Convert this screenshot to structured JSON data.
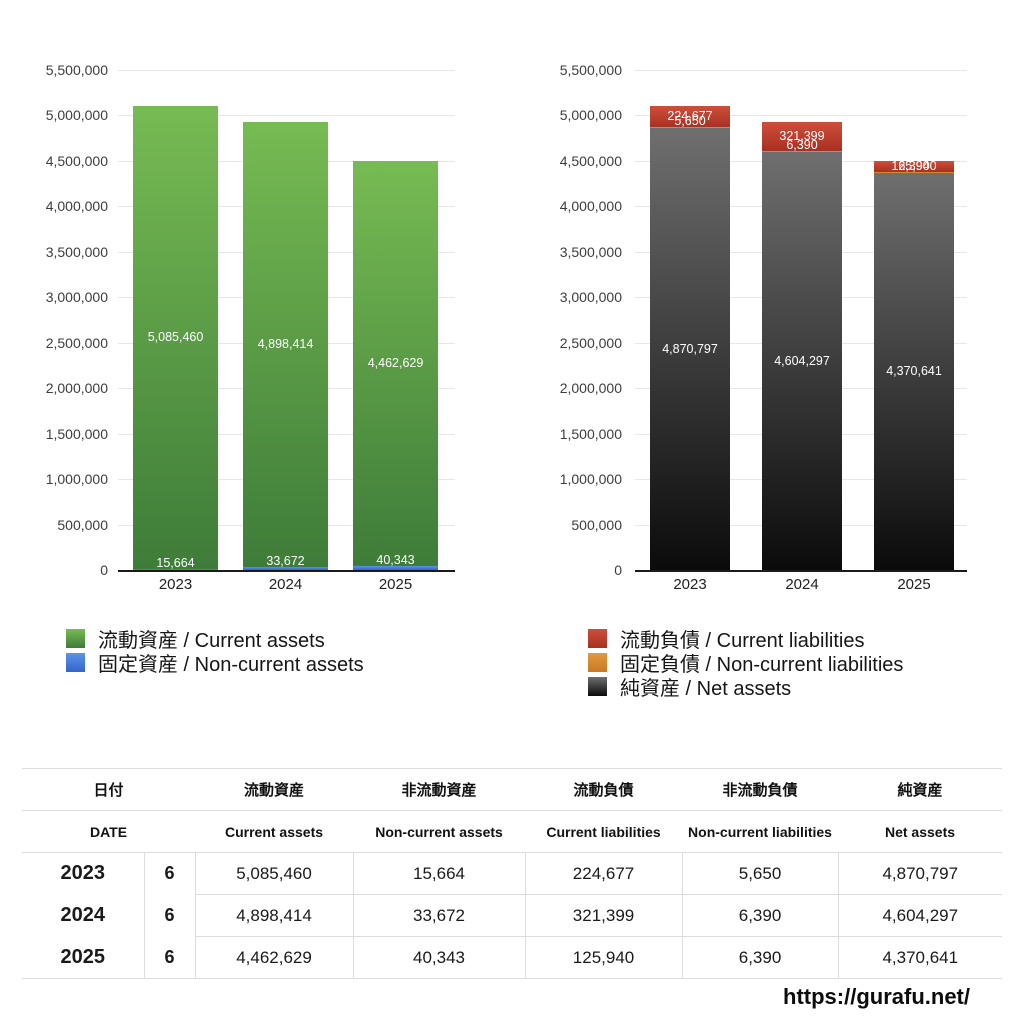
{
  "chart_data": [
    {
      "type": "bar",
      "stacked": true,
      "categories": [
        "2023",
        "2024",
        "2025"
      ],
      "ylim": [
        0,
        5500000
      ],
      "ytick_step": 500000,
      "grid": true,
      "legend_position": "bottom-left",
      "series": [
        {
          "name": "流動資産 / Current assets",
          "values": [
            5085460,
            4898414,
            4462629
          ],
          "color_top": "#77bb53",
          "color_bottom": "#3e7c39",
          "label_placement": "center"
        },
        {
          "name": "固定資産 / Non-current assets",
          "values": [
            15664,
            33672,
            40343
          ],
          "color_top": "#5b94e7",
          "color_bottom": "#3465cb",
          "label_placement": "above"
        }
      ]
    },
    {
      "type": "bar",
      "stacked": true,
      "categories": [
        "2023",
        "2024",
        "2025"
      ],
      "ylim": [
        0,
        5500000
      ],
      "ytick_step": 500000,
      "grid": true,
      "legend_position": "bottom-left",
      "series": [
        {
          "name": "流動負債 / Current liabilities",
          "values": [
            224677,
            321399,
            125940
          ],
          "color_top": "#ce4e3b",
          "color_bottom": "#a83122",
          "label_placement": "center"
        },
        {
          "name": "固定負債 / Non-current liabilities",
          "values": [
            5650,
            6390,
            6390
          ],
          "color_top": "#e29a40",
          "color_bottom": "#c97a21",
          "label_placement": "above"
        },
        {
          "name": "純資産 / Net assets",
          "values": [
            4870797,
            4604297,
            4370641
          ],
          "color_top": "#6f6f6f",
          "color_bottom": "#0b0b0b",
          "label_placement": "center"
        }
      ]
    }
  ],
  "table": {
    "header_ja": [
      "日付",
      "流動資産",
      "非流動資産",
      "流動負債",
      "非流動負債",
      "純資産"
    ],
    "header_en": [
      "DATE",
      "Current assets",
      "Non-current assets",
      "Current liabilities",
      "Non-current liabilities",
      "Net assets"
    ],
    "rows": [
      {
        "year": "2023",
        "month": "6",
        "values": [
          "5,085,460",
          "15,664",
          "224,677",
          "5,650",
          "4,870,797"
        ]
      },
      {
        "year": "2024",
        "month": "6",
        "values": [
          "4,898,414",
          "33,672",
          "321,399",
          "6,390",
          "4,604,297"
        ]
      },
      {
        "year": "2025",
        "month": "6",
        "values": [
          "4,462,629",
          "40,343",
          "125,940",
          "6,390",
          "4,370,641"
        ]
      }
    ]
  },
  "footer": {
    "url": "https://gurafu.net/"
  }
}
